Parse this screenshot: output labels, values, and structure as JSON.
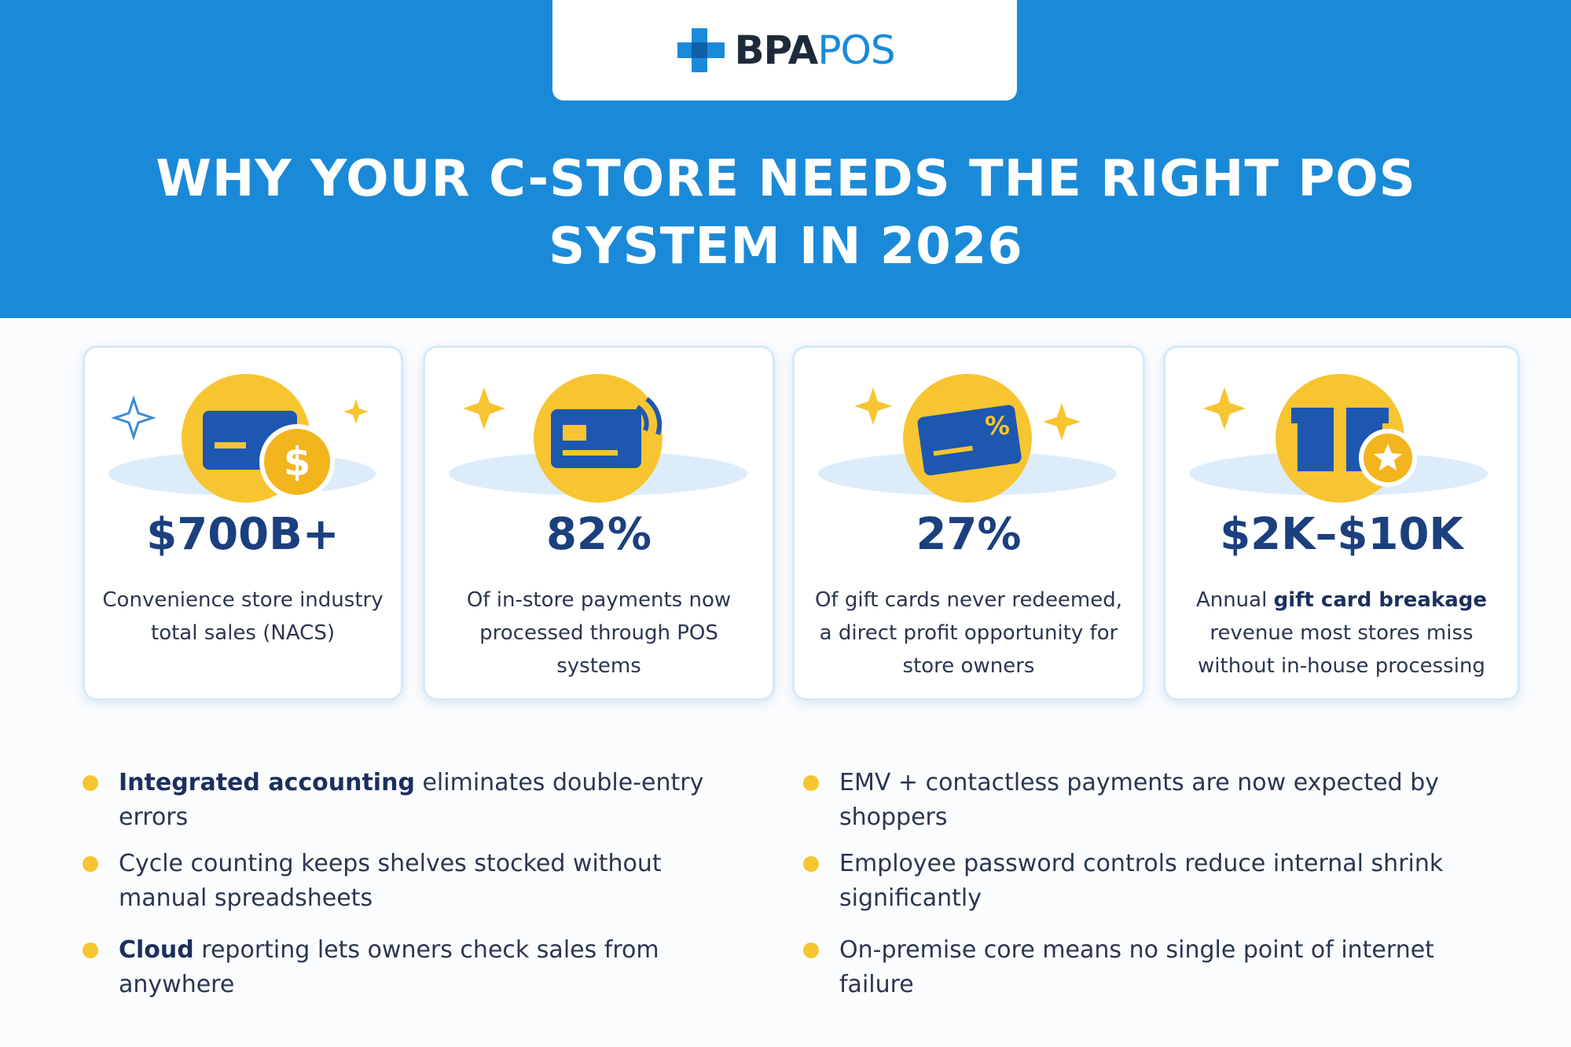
{
  "header": {
    "logo": {
      "bold": "BPA",
      "light": "POS"
    },
    "title": "WHY YOUR C-STORE NEEDS THE RIGHT POS SYSTEM IN 2026"
  },
  "stats": [
    {
      "value": "$700B+",
      "description": [
        {
          "text": "Convenience store industry total sales (NACS)"
        }
      ]
    },
    {
      "value": "82%",
      "description": [
        {
          "text": "Of in-store payments now processed through POS systems"
        }
      ]
    },
    {
      "value": "27%",
      "description": [
        {
          "text": "Of gift cards never redeemed, a direct profit opportunity for store owners"
        }
      ]
    },
    {
      "value": "$2K–$10K",
      "description": [
        {
          "text": "Annual"
        },
        {
          "text": "gift card breakage",
          "bold": true
        },
        {
          "text": "revenue most stores miss without in-house processing"
        }
      ]
    }
  ],
  "bullets": [
    [
      {
        "text": "Integrated accounting",
        "bold": true
      },
      {
        "text": "eliminates double-entry errors"
      }
    ],
    [
      {
        "text": "EMV + contactless payments are now expected by shoppers"
      }
    ],
    [
      {
        "text": "Cycle counting keeps shelves stocked without manual spreadsheets"
      }
    ],
    [
      {
        "text": "Employee password controls reduce internal shrink significantly"
      }
    ],
    [
      {
        "text": "Cloud",
        "bold": true
      },
      {
        "text": "reporting lets owners check sales from anywhere"
      }
    ],
    [
      {
        "text": "On-premise core means no single point of internet failure"
      }
    ]
  ]
}
